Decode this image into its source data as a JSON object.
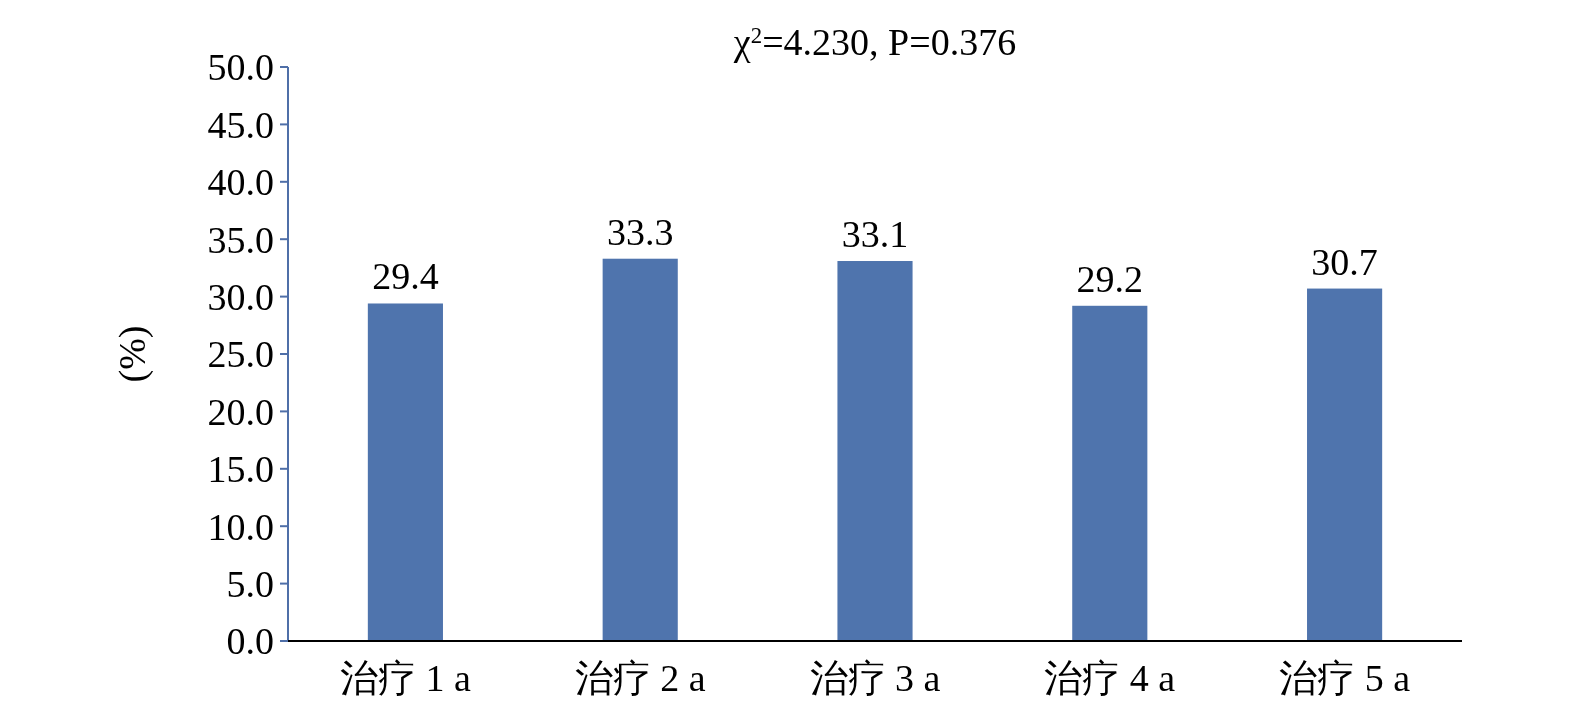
{
  "chart_data": {
    "type": "bar",
    "title": "χ$^{2}$=4.230, P=0.376",
    "ylabel": "(%)",
    "categories": [
      "治疗 1 a",
      "治疗 2 a",
      "治疗 3 a",
      "治疗 4 a",
      "治疗 5 a"
    ],
    "values": [
      29.4,
      33.3,
      33.1,
      29.2,
      30.7
    ],
    "color": "#4f74ad",
    "data_labels": true,
    "ylim": [
      0,
      50
    ],
    "yticks": [
      {
        "value": 0,
        "label": "0.0"
      },
      {
        "value": 5,
        "label": "5.0"
      },
      {
        "value": 10,
        "label": "10.0"
      },
      {
        "value": 15,
        "label": "15.0"
      },
      {
        "value": 20,
        "label": "20.0"
      },
      {
        "value": 25,
        "label": "25.0"
      },
      {
        "value": 30,
        "label": "30.0"
      },
      {
        "value": 35,
        "label": "35.0"
      },
      {
        "value": 40,
        "label": "40.0"
      },
      {
        "value": 45,
        "label": "45.0"
      },
      {
        "value": 50,
        "label": "50.0"
      }
    ]
  }
}
